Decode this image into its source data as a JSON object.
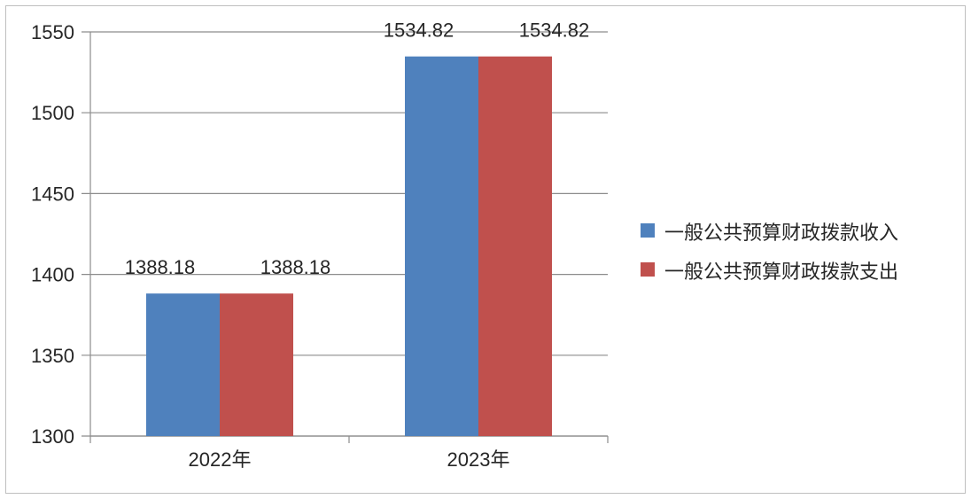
{
  "chart_data": {
    "type": "bar",
    "categories": [
      "2022年",
      "2023年"
    ],
    "series": [
      {
        "name": "一般公共预算财政拨款收入",
        "values": [
          1388.18,
          1534.82
        ],
        "color": "#4f81bd"
      },
      {
        "name": "一般公共预算财政拨款支出",
        "values": [
          1388.18,
          1534.82
        ],
        "color": "#c0504d"
      }
    ],
    "ylim": [
      1300,
      1550
    ],
    "yticks": [
      1300,
      1350,
      1400,
      1450,
      1500,
      1550
    ],
    "grid": true,
    "legend": "right",
    "data_labels": [
      "1388.18",
      "1388.18",
      "1534.82",
      "1534.82"
    ],
    "title": "",
    "xlabel": "",
    "ylabel": ""
  }
}
